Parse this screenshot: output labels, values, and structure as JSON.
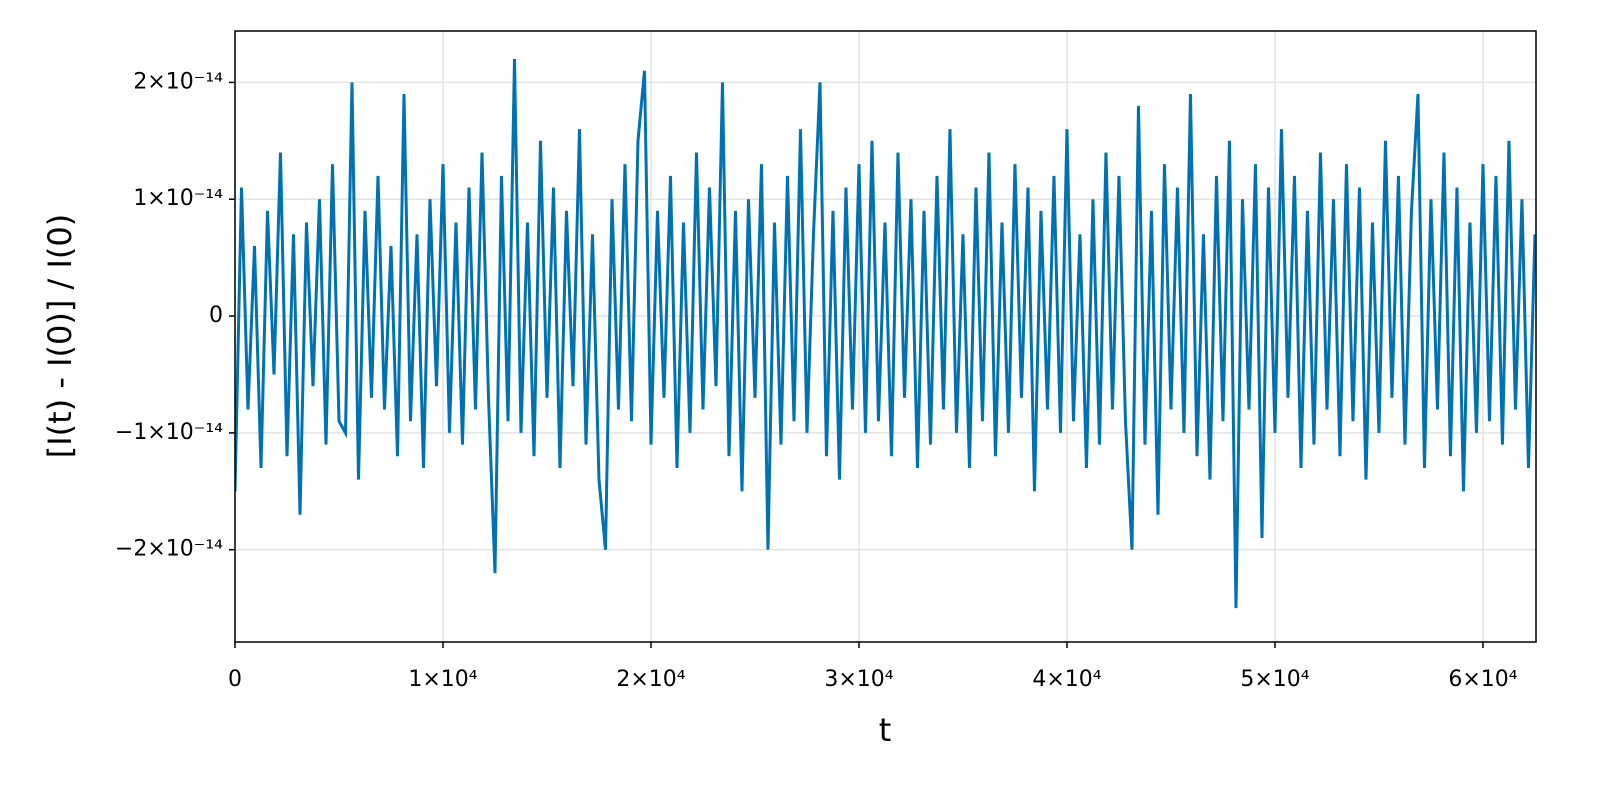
{
  "chart_data": {
    "type": "line",
    "xlabel": "t",
    "ylabel": "[I(t) - I(0)] / I(0)",
    "color": "#0072b2",
    "grid": true,
    "xlim": [
      0,
      62550
    ],
    "ylim": [
      -2.79e-14,
      2.44e-14
    ],
    "xticks": [
      0,
      {
        "value": 10000,
        "label": "1×10⁴"
      },
      {
        "value": 20000,
        "label": "2×10⁴"
      },
      {
        "value": 30000,
        "label": "3×10⁴"
      },
      {
        "value": 40000,
        "label": "4×10⁴"
      },
      {
        "value": 50000,
        "label": "5×10⁴"
      },
      {
        "value": 60000,
        "label": "6×10⁴"
      }
    ],
    "yticks": [
      {
        "value": -2e-14,
        "label": "−2×10⁻¹⁴"
      },
      {
        "value": -1e-14,
        "label": "−1×10⁻¹⁴"
      },
      0,
      {
        "value": 1e-14,
        "label": "1×10⁻¹⁴"
      },
      {
        "value": 2e-14,
        "label": "2×10⁻¹⁴"
      }
    ],
    "x": [
      0,
      312.5,
      625,
      937.5,
      1250,
      1562.5,
      1875,
      2187.5,
      2500,
      2812.5,
      3125,
      3437.5,
      3750,
      4062.5,
      4375,
      4687.5,
      5000,
      5312.5,
      5625,
      5937.5,
      6250,
      6562.5,
      6875,
      7187.5,
      7500,
      7812.5,
      8125,
      8437.5,
      8750,
      9062.5,
      9375,
      9687.5,
      10000,
      10312.5,
      10625,
      10937.5,
      11250,
      11562.5,
      11875,
      12187.5,
      12500,
      12812.5,
      13125,
      13437.5,
      13750,
      14062.5,
      14375,
      14687.5,
      15000,
      15312.5,
      15625,
      15937.5,
      16250,
      16562.5,
      16875,
      17187.5,
      17500,
      17812.5,
      18125,
      18437.5,
      18750,
      19062.5,
      19375,
      19687.5,
      20000,
      20312.5,
      20625,
      20937.5,
      21250,
      21562.5,
      21875,
      22187.5,
      22500,
      22812.5,
      23125,
      23437.5,
      23750,
      24062.5,
      24375,
      24687.5,
      25000,
      25312.5,
      25625,
      25937.5,
      26250,
      26562.5,
      26875,
      27187.5,
      27500,
      27812.5,
      28125,
      28437.5,
      28750,
      29062.5,
      29375,
      29687.5,
      30000,
      30312.5,
      30625,
      30937.5,
      31250,
      31562.5,
      31875,
      32187.5,
      32500,
      32812.5,
      33125,
      33437.5,
      33750,
      34062.5,
      34375,
      34687.5,
      35000,
      35312.5,
      35625,
      35937.5,
      36250,
      36562.5,
      36875,
      37187.5,
      37500,
      37812.5,
      38125,
      38437.5,
      38750,
      39062.5,
      39375,
      39687.5,
      40000,
      40312.5,
      40625,
      40937.5,
      41250,
      41562.5,
      41875,
      42187.5,
      42500,
      42812.5,
      43125,
      43437.5,
      43750,
      44062.5,
      44375,
      44687.5,
      45000,
      45312.5,
      45625,
      45937.5,
      46250,
      46562.5,
      46875,
      47187.5,
      47500,
      47812.5,
      48125,
      48437.5,
      48750,
      49062.5,
      49375,
      49687.5,
      50000,
      50312.5,
      50625,
      50937.5,
      51250,
      51562.5,
      51875,
      52187.5,
      52500,
      52812.5,
      53125,
      53437.5,
      53750,
      54062.5,
      54375,
      54687.5,
      55000,
      55312.5,
      55625,
      55937.5,
      56250,
      56562.5,
      56875,
      57187.5,
      57500,
      57812.5,
      58125,
      58437.5,
      58750,
      59062.5,
      59375,
      59687.5,
      60000,
      60312.5,
      60625,
      60937.5,
      61250,
      61562.5,
      61875,
      62187.5,
      62500
    ],
    "values": [
      -1.5e-14,
      1.1e-14,
      -8e-15,
      6e-15,
      -1.3e-14,
      9e-15,
      -5e-15,
      1.4e-14,
      -1.2e-14,
      7e-15,
      -1.7e-14,
      8e-15,
      -6e-15,
      1e-14,
      -1.1e-14,
      1.3e-14,
      -9e-15,
      -1e-14,
      2e-14,
      -1.4e-14,
      9e-15,
      -7e-15,
      1.2e-14,
      -8e-15,
      6e-15,
      -1.2e-14,
      1.9e-14,
      -9e-15,
      7e-15,
      -1.3e-14,
      1e-14,
      -6e-15,
      1.3e-14,
      -1e-14,
      8e-15,
      -1.1e-14,
      1.1e-14,
      -8e-15,
      1.4e-14,
      -7e-15,
      -2.2e-14,
      1.2e-14,
      -9e-15,
      2.2e-14,
      -1e-14,
      8e-15,
      -1.2e-14,
      1.5e-14,
      -7e-15,
      1.1e-14,
      -1.3e-14,
      9e-15,
      -6e-15,
      1.6e-14,
      -1.1e-14,
      7e-15,
      -1.4e-14,
      -2e-14,
      1e-14,
      -8e-15,
      1.3e-14,
      -9e-15,
      1.5e-14,
      2.1e-14,
      -1.1e-14,
      9e-15,
      -7e-15,
      1.2e-14,
      -1.3e-14,
      8e-15,
      -1e-14,
      1.4e-14,
      -8e-15,
      1.1e-14,
      -6e-15,
      2e-14,
      -1.2e-14,
      9e-15,
      -1.5e-14,
      1e-14,
      -7e-15,
      1.3e-14,
      -2e-14,
      8e-15,
      -1.1e-14,
      1.2e-14,
      -9e-15,
      1.6e-14,
      -1e-14,
      7e-15,
      2e-14,
      -1.2e-14,
      9e-15,
      -1.4e-14,
      1.1e-14,
      -8e-15,
      1.3e-14,
      -1e-14,
      1.5e-14,
      -9e-15,
      8e-15,
      -1.2e-14,
      1.4e-14,
      -7e-15,
      1e-14,
      -1.3e-14,
      9e-15,
      -1.1e-14,
      1.2e-14,
      -8e-15,
      1.6e-14,
      -1e-14,
      7e-15,
      -1.3e-14,
      1.1e-14,
      -9e-15,
      1.4e-14,
      -1.2e-14,
      8e-15,
      -1e-14,
      1.3e-14,
      -7e-15,
      1.1e-14,
      -1.5e-14,
      9e-15,
      -8e-15,
      1.2e-14,
      -1e-14,
      1.6e-14,
      -9e-15,
      7e-15,
      -1.3e-14,
      1e-14,
      -1.1e-14,
      1.4e-14,
      -8e-15,
      1.2e-14,
      -9e-15,
      -2e-14,
      1.8e-14,
      -1.1e-14,
      9e-15,
      -1.7e-14,
      1.3e-14,
      -8e-15,
      1.1e-14,
      -1e-14,
      1.9e-14,
      -1.2e-14,
      7e-15,
      -1.4e-14,
      1.2e-14,
      -9e-15,
      1.5e-14,
      -2.5e-14,
      1e-14,
      -8e-15,
      1.3e-14,
      -1.9e-14,
      1.1e-14,
      -1e-14,
      1.6e-14,
      -7e-15,
      1.2e-14,
      -1.3e-14,
      9e-15,
      -1.1e-14,
      1.4e-14,
      -8e-15,
      1e-14,
      -1.2e-14,
      1.3e-14,
      -9e-15,
      1.1e-14,
      -1.4e-14,
      8e-15,
      -1e-14,
      1.5e-14,
      -7e-15,
      1.2e-14,
      -1.1e-14,
      9e-15,
      1.9e-14,
      -1.3e-14,
      1e-14,
      -8e-15,
      1.4e-14,
      -1.2e-14,
      1.1e-14,
      -1.5e-14,
      8e-15,
      -1e-14,
      1.3e-14,
      -9e-15,
      1.2e-14,
      -1.1e-14,
      1.5e-14,
      -8e-15,
      1e-14,
      -1.3e-14,
      7e-15
    ]
  }
}
